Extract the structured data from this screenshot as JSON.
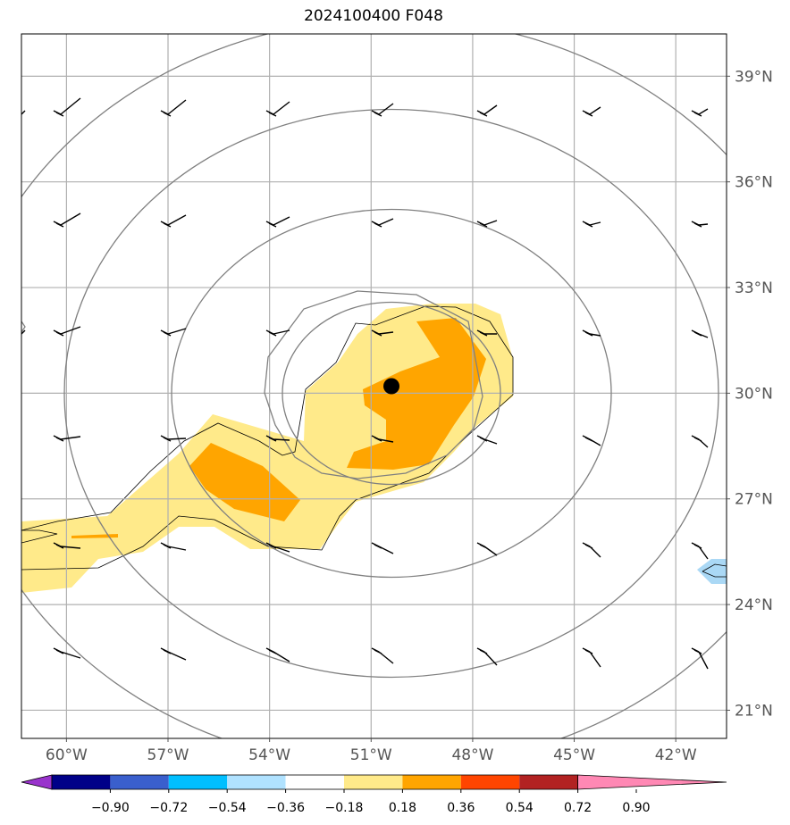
{
  "title": "2024100400 F048",
  "map": {
    "lon_range": [
      -61.33,
      -40.5
    ],
    "lat_range": [
      20.2,
      40.2
    ],
    "lon_ticks": [
      {
        "value": -60,
        "label": "60°W"
      },
      {
        "value": -57,
        "label": "57°W"
      },
      {
        "value": -54,
        "label": "54°W"
      },
      {
        "value": -51,
        "label": "51°W"
      },
      {
        "value": -48,
        "label": "48°W"
      },
      {
        "value": -45,
        "label": "45°W"
      },
      {
        "value": -42,
        "label": "42°W"
      }
    ],
    "lat_ticks": [
      {
        "value": 21,
        "label": "21°N"
      },
      {
        "value": 24,
        "label": "24°N"
      },
      {
        "value": 27,
        "label": "27°N"
      },
      {
        "value": 30,
        "label": "30°N"
      },
      {
        "value": 33,
        "label": "33°N"
      },
      {
        "value": 36,
        "label": "36°N"
      },
      {
        "value": 39,
        "label": "39°N"
      }
    ],
    "center": {
      "lon": -50.4,
      "lat": 30.2
    },
    "grid": true,
    "colors": {
      "grid": "#b0b0b0",
      "contour": "#808080",
      "shade_low": "#ffea8a",
      "shade_mid": "#ffa500",
      "shade_neg": "#aad8f5",
      "marker": "#000000"
    }
  },
  "colorbar": {
    "colors": [
      "#9933cc",
      "#000088",
      "#3a5fcd",
      "#00bfff",
      "#b0e2ff",
      "#ffffff",
      "#ffea8a",
      "#ffa500",
      "#ff4500",
      "#b22222",
      "#ff88b4"
    ],
    "labels": [
      "−0.90",
      "−0.72",
      "−0.54",
      "−0.36",
      "−0.18",
      "0.18",
      "0.36",
      "0.54",
      "0.72",
      "0.90"
    ]
  }
}
